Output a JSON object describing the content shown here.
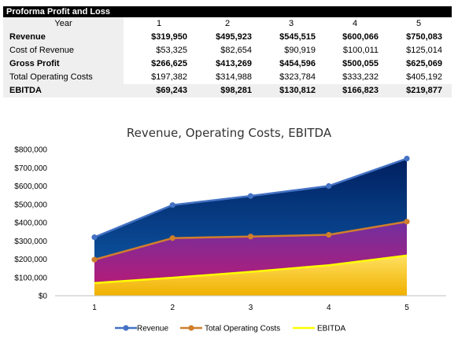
{
  "table": {
    "title": "Proforma Profit and Loss",
    "header_label": "Year",
    "years": [
      "1",
      "2",
      "3",
      "4",
      "5"
    ],
    "rows": [
      {
        "label": "Revenue",
        "values": [
          "$319,950",
          "$495,923",
          "$545,515",
          "$600,066",
          "$750,083"
        ]
      },
      {
        "label": "Cost of Revenue",
        "values": [
          "$53,325",
          "$82,654",
          "$90,919",
          "$100,011",
          "$125,014"
        ]
      },
      {
        "label": "Gross Profit",
        "values": [
          "$266,625",
          "$413,269",
          "$454,596",
          "$500,055",
          "$625,069"
        ]
      },
      {
        "label": "Total Operating Costs",
        "values": [
          "$197,382",
          "$314,988",
          "$323,784",
          "$333,232",
          "$405,192"
        ]
      },
      {
        "label": "EBITDA",
        "values": [
          "$69,243",
          "$98,281",
          "$130,812",
          "$166,823",
          "$219,877"
        ]
      }
    ]
  },
  "chart_data": {
    "type": "area",
    "title": "Revenue, Operating Costs, EBITDA",
    "x": [
      1,
      2,
      3,
      4,
      5
    ],
    "x_tick_labels": [
      "1",
      "2",
      "3",
      "4",
      "5"
    ],
    "ylim": [
      0,
      800000
    ],
    "y_ticks": [
      0,
      100000,
      200000,
      300000,
      400000,
      500000,
      600000,
      700000,
      800000
    ],
    "y_tick_labels": [
      "$0",
      "$100,000",
      "$200,000",
      "$300,000",
      "$400,000",
      "$500,000",
      "$600,000",
      "$700,000",
      "$800,000"
    ],
    "grid": false,
    "legend_position": "bottom",
    "series": [
      {
        "name": "Revenue",
        "values": [
          319950,
          495923,
          545515,
          600066,
          750083
        ],
        "line_color": "#4472c4",
        "fill_top": "#002060",
        "fill_bottom": "#1060b0"
      },
      {
        "name": "Total Operating Costs",
        "values": [
          197382,
          314988,
          323784,
          333232,
          405192
        ],
        "line_color": "#d07f2c",
        "fill_top": "#7030a0",
        "fill_bottom": "#c01870"
      },
      {
        "name": "EBITDA",
        "values": [
          69243,
          98281,
          130812,
          166823,
          219877
        ],
        "line_color": "#ffff00",
        "fill_top": "#ffe060",
        "fill_bottom": "#f0b000"
      }
    ]
  }
}
